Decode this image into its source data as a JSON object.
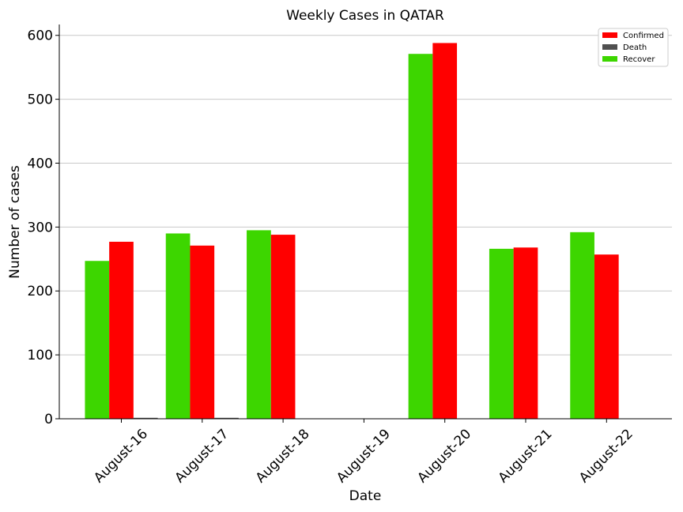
{
  "chart_data": {
    "type": "bar",
    "title": "Weekly Cases in QATAR",
    "xlabel": "Date",
    "ylabel": "Number of cases",
    "categories": [
      "August-16",
      "August-17",
      "August-18",
      "August-19",
      "August-20",
      "August-21",
      "August-22"
    ],
    "series": [
      {
        "name": "Recover",
        "color": "#3dd600",
        "values": [
          247,
          290,
          295,
          0,
          571,
          266,
          292
        ]
      },
      {
        "name": "Confirmed",
        "color": "#ff0000",
        "values": [
          277,
          271,
          288,
          0,
          588,
          268,
          257
        ]
      },
      {
        "name": "Death",
        "color": "#505050",
        "values": [
          1,
          1,
          0,
          0,
          0,
          0,
          0
        ]
      }
    ],
    "legend_order": [
      "Confirmed",
      "Death",
      "Recover"
    ],
    "legend_position": "upper-right",
    "ylim": [
      0,
      617
    ],
    "yticks": [
      0,
      100,
      200,
      300,
      400,
      500,
      600
    ],
    "grid": "horizontal"
  }
}
